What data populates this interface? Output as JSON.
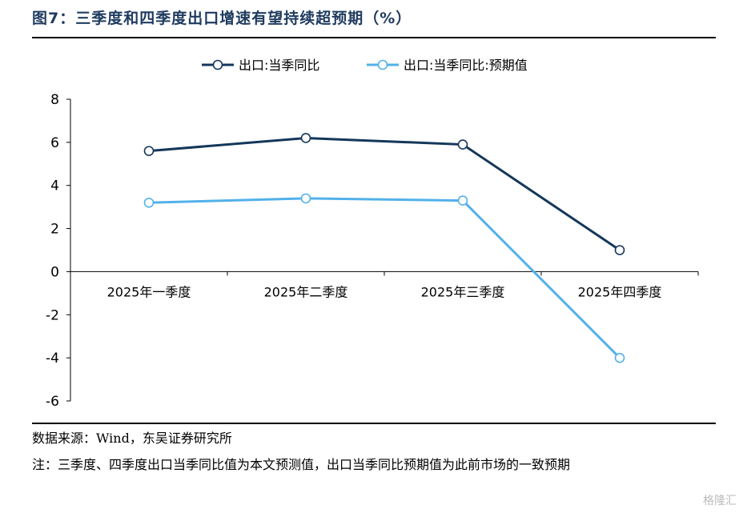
{
  "figure_title": "图7：三季度和四季度出口增速有望持续超预期（%）",
  "source": "数据来源：Wind，东吴证券研究所",
  "note": "注：三季度、四季度出口当季同比值为本文预测值，出口当季同比预期值为此前市场的一致预期",
  "watermark": "格隆汇",
  "chart_data": {
    "type": "line",
    "categories": [
      "2025年一季度",
      "2025年二季度",
      "2025年三季度",
      "2025年四季度"
    ],
    "series": [
      {
        "name": "出口:当季同比",
        "values": [
          5.6,
          6.2,
          5.9,
          1.0
        ],
        "color": "#14375a"
      },
      {
        "name": "出口:当季同比:预期值",
        "values": [
          3.2,
          3.4,
          3.3,
          -4.0
        ],
        "color": "#52b1ea"
      }
    ],
    "ylim": [
      -6,
      8
    ],
    "yticks": [
      8,
      6,
      4,
      2,
      0,
      -2,
      -4,
      -6
    ],
    "legend_position": "top",
    "grid": false
  }
}
